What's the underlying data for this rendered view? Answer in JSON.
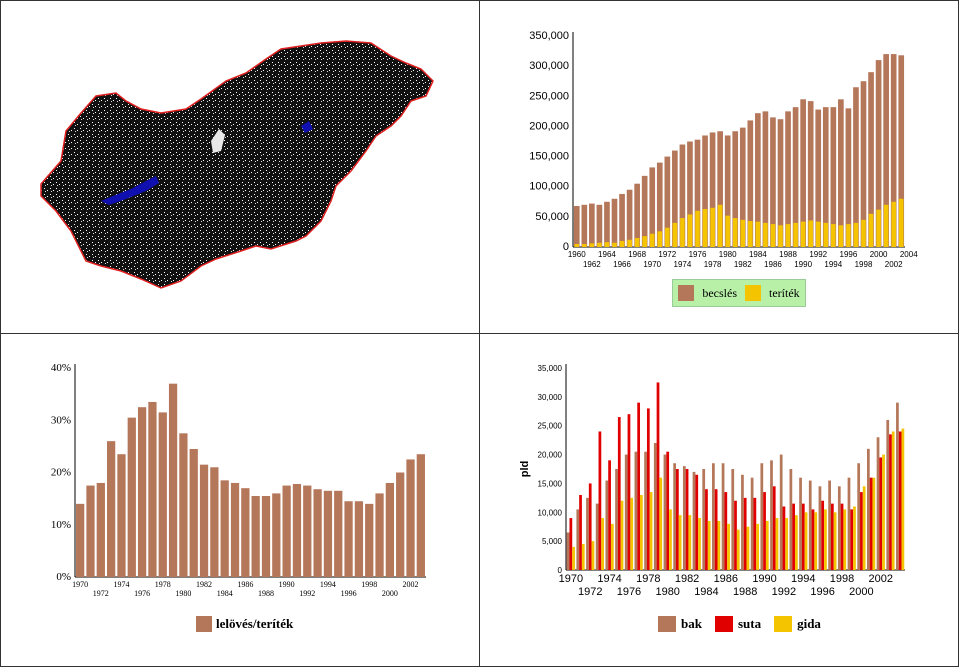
{
  "colors": {
    "brown": "#B5775A",
    "yellow": "#F5C400",
    "red": "#E00000",
    "lake": "#1010B0",
    "border": "#E02020",
    "dark": "#111111"
  },
  "map": {
    "icon": "hungary-map"
  },
  "chart_data": [
    {
      "id": "becsles",
      "type": "bar",
      "x_start": 1960,
      "x_tick_labels_row1": [
        "1960",
        "1964",
        "1968",
        "1972",
        "1976",
        "1980",
        "1984",
        "1988",
        "1992",
        "1996",
        "2000",
        "2004"
      ],
      "x_tick_labels_row2": [
        "1962",
        "1966",
        "1970",
        "1974",
        "1978",
        "1982",
        "1986",
        "1990",
        "1994",
        "1998",
        "2002"
      ],
      "y_ticks": [
        "0",
        "50,000",
        "100,000",
        "150,000",
        "200,000",
        "250,000",
        "300,000",
        "350,000"
      ],
      "ylim": [
        0,
        350000
      ],
      "series": [
        {
          "name": "becslés",
          "color": "#B5775A",
          "values": [
            68000,
            70000,
            72000,
            70000,
            75000,
            80000,
            88000,
            95000,
            105000,
            118000,
            132000,
            140000,
            150000,
            160000,
            170000,
            175000,
            178000,
            185000,
            190000,
            192000,
            185000,
            192000,
            198000,
            210000,
            222000,
            225000,
            215000,
            212000,
            225000,
            232000,
            245000,
            242000,
            228000,
            232000,
            232000,
            245000,
            230000,
            265000,
            275000,
            290000,
            310000,
            320000,
            320000,
            318000
          ]
        },
        {
          "name": "teríték",
          "color": "#F5C400",
          "values": [
            5000,
            5000,
            6000,
            7000,
            8000,
            7000,
            10000,
            12000,
            15000,
            18000,
            22000,
            26000,
            32000,
            40000,
            48000,
            54000,
            60000,
            63000,
            65000,
            70000,
            52000,
            48000,
            45000,
            43000,
            42000,
            40000,
            38000,
            36000,
            38000,
            40000,
            42000,
            44000,
            42000,
            40000,
            38000,
            36000,
            38000,
            40000,
            45000,
            55000,
            62000,
            70000,
            75000,
            80000
          ]
        }
      ],
      "legend": [
        "becslés",
        "teríték"
      ]
    },
    {
      "id": "ratio",
      "type": "bar",
      "x_start": 1970,
      "x_tick_labels_row1": [
        "1970",
        "1974",
        "1978",
        "1982",
        "1986",
        "1990",
        "1994",
        "1998",
        "2002"
      ],
      "x_tick_labels_row2": [
        "1972",
        "1976",
        "1980",
        "1984",
        "1988",
        "1992",
        "1996",
        "2000"
      ],
      "y_ticks": [
        "0%",
        "10%",
        "20%",
        "30%",
        "40%"
      ],
      "ylim": [
        0,
        40
      ],
      "series": [
        {
          "name": "lelövés/teríték",
          "color": "#B5775A",
          "values": [
            14,
            17.5,
            18,
            26,
            23.5,
            30.5,
            32.5,
            33.5,
            31.5,
            37,
            27.5,
            24.5,
            21.5,
            21,
            18.5,
            18,
            17,
            15.5,
            15.5,
            16,
            17.5,
            17.8,
            17.5,
            16.8,
            16.5,
            16.5,
            14.5,
            14.5,
            14,
            16,
            18,
            20,
            22.5,
            23.5
          ]
        }
      ],
      "legend": [
        "lelövés/teríték"
      ]
    },
    {
      "id": "pld",
      "type": "bar",
      "x_start": 1970,
      "ylabel": "pld",
      "x_tick_labels_row1": [
        "1970",
        "1974",
        "1978",
        "1982",
        "1986",
        "1990",
        "1994",
        "1998",
        "2002"
      ],
      "x_tick_labels_row2": [
        "1972",
        "1976",
        "1980",
        "1984",
        "1988",
        "1992",
        "1996",
        "2000"
      ],
      "y_ticks": [
        "0",
        "5,000",
        "10,000",
        "15,000",
        "20,000",
        "25,000",
        "30,000",
        "35,000"
      ],
      "ylim": [
        0,
        35000
      ],
      "series": [
        {
          "name": "bak",
          "color": "#B5775A",
          "values": [
            6500,
            10500,
            12500,
            11500,
            15500,
            17500,
            20000,
            20500,
            20500,
            22000,
            20000,
            18500,
            18000,
            17000,
            17500,
            18500,
            18500,
            17500,
            16500,
            16000,
            18500,
            19000,
            20000,
            17500,
            16000,
            15500,
            14500,
            15500,
            14500,
            16000,
            18500,
            21000,
            23000,
            26000,
            29000
          ]
        },
        {
          "name": "suta",
          "color": "#E00000",
          "values": [
            9000,
            13000,
            15000,
            24000,
            19000,
            26500,
            27000,
            29000,
            28000,
            32500,
            20500,
            17500,
            17500,
            16500,
            14000,
            14000,
            13500,
            12000,
            12500,
            12500,
            13500,
            14500,
            11000,
            11500,
            11500,
            10500,
            12000,
            11500,
            11500,
            10500,
            13500,
            16000,
            19500,
            23500,
            24000
          ]
        },
        {
          "name": "gida",
          "color": "#F5C400",
          "values": [
            4000,
            4500,
            5000,
            9000,
            8000,
            12000,
            12500,
            13000,
            13500,
            16000,
            10500,
            9500,
            9500,
            9000,
            8500,
            8500,
            8000,
            7000,
            7500,
            8000,
            8500,
            9000,
            9000,
            9500,
            10000,
            10000,
            10500,
            10000,
            10500,
            11000,
            14500,
            16000,
            20000,
            24000,
            24500
          ]
        }
      ],
      "legend": [
        "bak",
        "suta",
        "gida"
      ]
    }
  ]
}
